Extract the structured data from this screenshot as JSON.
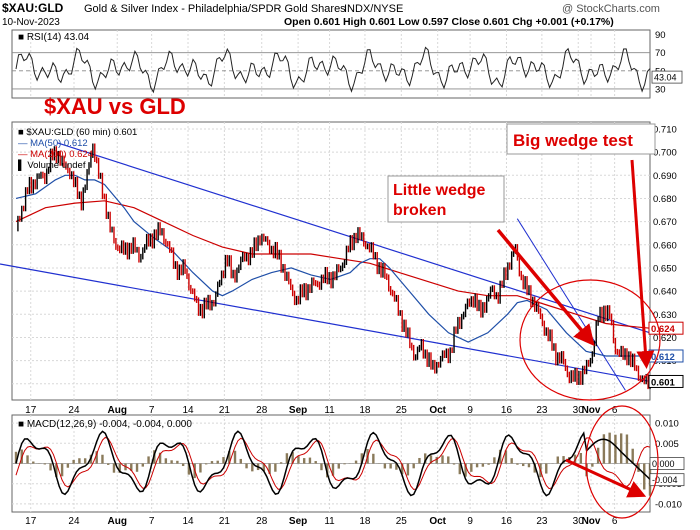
{
  "header": {
    "symbol": "$XAU:GLD",
    "name": "Gold & Silver Index - Philadelphia/SPDR Gold Shares",
    "exchange": "INDX/NYSE",
    "date": "10-Nov-2023",
    "ohlc_line": "Open 0.601   High 0.601   Low 0.597   Close 0.601   Chg +0.001 (+0.17%)",
    "watermark": "@ StockCharts.com",
    "overlay_title": "$XAU vs GLD"
  },
  "chart_data": [
    {
      "type": "line",
      "panel": "rsi",
      "legend": "RSI(14) 43.04",
      "yticks": [
        30,
        50,
        70,
        90
      ],
      "ylim": [
        20,
        95
      ],
      "ref_lines": [
        30,
        50,
        70
      ],
      "current_label": "43.04",
      "current_value": 43.04
    },
    {
      "type": "line",
      "panel": "price",
      "legend": [
        "$XAU:GLD (60 min) 0.601",
        "MA(50) 0.612",
        "MA(200) 0.624",
        "Volume undef"
      ],
      "x_ticks": [
        "17",
        "24",
        "Aug",
        "7",
        "14",
        "21",
        "28",
        "Sep",
        "11",
        "18",
        "25",
        "Oct",
        "9",
        "16",
        "23",
        "30",
        "Nov",
        "6"
      ],
      "yticks": [
        0.6,
        0.61,
        0.62,
        0.63,
        0.64,
        0.65,
        0.66,
        0.67,
        0.68,
        0.69,
        0.7,
        0.71
      ],
      "ylim": [
        0.593,
        0.713
      ],
      "price_path": [
        [
          0,
          0.667
        ],
        [
          0.6,
          0.676
        ],
        [
          1.2,
          0.684
        ],
        [
          2,
          0.688
        ],
        [
          3,
          0.69
        ],
        [
          3.6,
          0.698
        ],
        [
          4.2,
          0.7
        ],
        [
          4.8,
          0.694
        ],
        [
          5.5,
          0.692
        ],
        [
          6,
          0.685
        ],
        [
          6.6,
          0.679
        ],
        [
          7.2,
          0.688
        ],
        [
          7.8,
          0.704
        ],
        [
          8.4,
          0.69
        ],
        [
          9,
          0.68
        ],
        [
          9.6,
          0.666
        ],
        [
          10.2,
          0.66
        ],
        [
          11,
          0.657
        ],
        [
          11.8,
          0.66
        ],
        [
          12.5,
          0.655
        ],
        [
          13.2,
          0.66
        ],
        [
          14,
          0.664
        ],
        [
          14.8,
          0.666
        ],
        [
          15.4,
          0.66
        ],
        [
          16,
          0.653
        ],
        [
          16.6,
          0.648
        ],
        [
          17.2,
          0.65
        ],
        [
          17.8,
          0.64
        ],
        [
          18.4,
          0.634
        ],
        [
          19,
          0.632
        ],
        [
          19.6,
          0.635
        ],
        [
          20.2,
          0.636
        ],
        [
          20.8,
          0.645
        ],
        [
          21.4,
          0.655
        ],
        [
          22,
          0.646
        ],
        [
          22.6,
          0.65
        ],
        [
          23.2,
          0.655
        ],
        [
          24,
          0.656
        ],
        [
          24.8,
          0.664
        ],
        [
          25.6,
          0.66
        ],
        [
          26.4,
          0.657
        ],
        [
          27.2,
          0.65
        ],
        [
          28,
          0.64
        ],
        [
          28.6,
          0.636
        ],
        [
          29.2,
          0.64
        ],
        [
          30,
          0.642
        ],
        [
          30.8,
          0.644
        ],
        [
          31.6,
          0.646
        ],
        [
          32.4,
          0.646
        ],
        [
          33.2,
          0.652
        ],
        [
          34,
          0.66
        ],
        [
          34.6,
          0.665
        ],
        [
          35.2,
          0.662
        ],
        [
          35.8,
          0.66
        ],
        [
          36.4,
          0.655
        ],
        [
          37,
          0.65
        ],
        [
          37.6,
          0.646
        ],
        [
          38.2,
          0.64
        ],
        [
          38.8,
          0.633
        ],
        [
          39.4,
          0.626
        ],
        [
          40,
          0.618
        ],
        [
          40.6,
          0.612
        ],
        [
          41.2,
          0.616
        ],
        [
          41.8,
          0.612
        ],
        [
          42.4,
          0.606
        ],
        [
          43,
          0.61
        ],
        [
          43.6,
          0.612
        ],
        [
          44.2,
          0.614
        ],
        [
          44.8,
          0.624
        ],
        [
          45.4,
          0.63
        ],
        [
          46,
          0.634
        ],
        [
          46.6,
          0.638
        ],
        [
          47.2,
          0.63
        ],
        [
          47.8,
          0.636
        ],
        [
          48.4,
          0.64
        ],
        [
          49,
          0.638
        ],
        [
          49.6,
          0.645
        ],
        [
          50.2,
          0.653
        ],
        [
          50.8,
          0.658
        ],
        [
          51.4,
          0.646
        ],
        [
          52,
          0.64
        ],
        [
          52.6,
          0.636
        ],
        [
          53.2,
          0.63
        ],
        [
          53.8,
          0.624
        ],
        [
          54.4,
          0.618
        ],
        [
          55,
          0.612
        ],
        [
          55.6,
          0.61
        ],
        [
          56.2,
          0.604
        ],
        [
          56.8,
          0.602
        ],
        [
          57.4,
          0.604
        ],
        [
          58,
          0.606
        ],
        [
          58.6,
          0.613
        ],
        [
          59.2,
          0.628
        ],
        [
          59.8,
          0.632
        ],
        [
          60.4,
          0.629
        ],
        [
          61,
          0.615
        ],
        [
          61.6,
          0.612
        ],
        [
          62.2,
          0.613
        ],
        [
          62.8,
          0.608
        ],
        [
          63.4,
          0.604
        ],
        [
          64,
          0.6
        ],
        [
          64.5,
          0.601
        ]
      ],
      "ma50_path": [
        [
          0,
          0.68
        ],
        [
          2,
          0.682
        ],
        [
          4,
          0.688
        ],
        [
          5,
          0.69
        ],
        [
          6,
          0.69
        ],
        [
          7,
          0.688
        ],
        [
          8,
          0.688
        ],
        [
          9,
          0.686
        ],
        [
          10,
          0.681
        ],
        [
          11,
          0.676
        ],
        [
          12,
          0.67
        ],
        [
          14,
          0.663
        ],
        [
          16,
          0.657
        ],
        [
          18,
          0.648
        ],
        [
          20,
          0.64
        ],
        [
          21,
          0.638
        ],
        [
          22,
          0.64
        ],
        [
          24,
          0.645
        ],
        [
          26,
          0.648
        ],
        [
          28,
          0.65
        ],
        [
          30,
          0.647
        ],
        [
          32,
          0.645
        ],
        [
          34,
          0.648
        ],
        [
          35,
          0.652
        ],
        [
          36,
          0.654
        ],
        [
          37,
          0.654
        ],
        [
          38,
          0.65
        ],
        [
          40,
          0.64
        ],
        [
          42,
          0.63
        ],
        [
          44,
          0.622
        ],
        [
          46,
          0.618
        ],
        [
          48,
          0.622
        ],
        [
          50,
          0.63
        ],
        [
          51,
          0.635
        ],
        [
          52,
          0.636
        ],
        [
          54,
          0.632
        ],
        [
          56,
          0.622
        ],
        [
          58,
          0.614
        ],
        [
          60,
          0.612
        ],
        [
          62,
          0.612
        ],
        [
          64,
          0.612
        ],
        [
          64.5,
          0.612
        ]
      ],
      "ma200_path": [
        [
          0,
          0.67
        ],
        [
          3,
          0.676
        ],
        [
          6,
          0.678
        ],
        [
          9,
          0.679
        ],
        [
          12,
          0.676
        ],
        [
          15,
          0.67
        ],
        [
          18,
          0.664
        ],
        [
          21,
          0.659
        ],
        [
          24,
          0.656
        ],
        [
          27,
          0.656
        ],
        [
          30,
          0.656
        ],
        [
          33,
          0.654
        ],
        [
          36,
          0.652
        ],
        [
          39,
          0.648
        ],
        [
          42,
          0.644
        ],
        [
          45,
          0.64
        ],
        [
          48,
          0.638
        ],
        [
          51,
          0.638
        ],
        [
          54,
          0.634
        ],
        [
          57,
          0.63
        ],
        [
          60,
          0.626
        ],
        [
          62,
          0.625
        ],
        [
          64.5,
          0.624
        ]
      ],
      "channel_upper": [
        [
          4.2,
          0.704
        ],
        [
          64.5,
          0.622
        ]
      ],
      "channel_lower": [
        [
          -1.5,
          0.65
        ],
        [
          64.5,
          0.601
        ]
      ],
      "wedge_upper": [
        [
          51,
          0.64
        ],
        [
          64,
          0.608
        ]
      ],
      "wedge_lower": [
        [
          51,
          0.654
        ],
        [
          62,
          0.598
        ]
      ],
      "callouts": [
        {
          "label": "Little wedge broken",
          "line1": "Little wedge",
          "line2": "broken"
        },
        {
          "label": "Big wedge test"
        }
      ],
      "price_labels": [
        {
          "text": "0.624",
          "value": 0.624,
          "color": "#cc0000"
        },
        {
          "text": "0.612",
          "value": 0.612,
          "color": "#1f4fa8"
        },
        {
          "text": "0.601",
          "value": 0.601,
          "color": "#000000"
        }
      ]
    },
    {
      "type": "line",
      "panel": "macd",
      "legend": "MACD(12,26,9) -0.004, -0.004, 0.000",
      "yticks": [
        -0.01,
        -0.005,
        0.0,
        0.005,
        0.01
      ],
      "ylim": [
        -0.012,
        0.012
      ],
      "labels": [
        {
          "text": "0.000",
          "value": 0.0
        },
        {
          "text": "-0.004",
          "value": -0.004
        }
      ]
    }
  ],
  "colors": {
    "price_up": "#000000",
    "price_down": "#cc0000",
    "ma50": "#1f4fa8",
    "ma200": "#cc0000",
    "channel": "#2030d0",
    "annotation": "#dd0000",
    "grid": "#d8d8d8",
    "macd_hist": "#8a7a5a"
  }
}
